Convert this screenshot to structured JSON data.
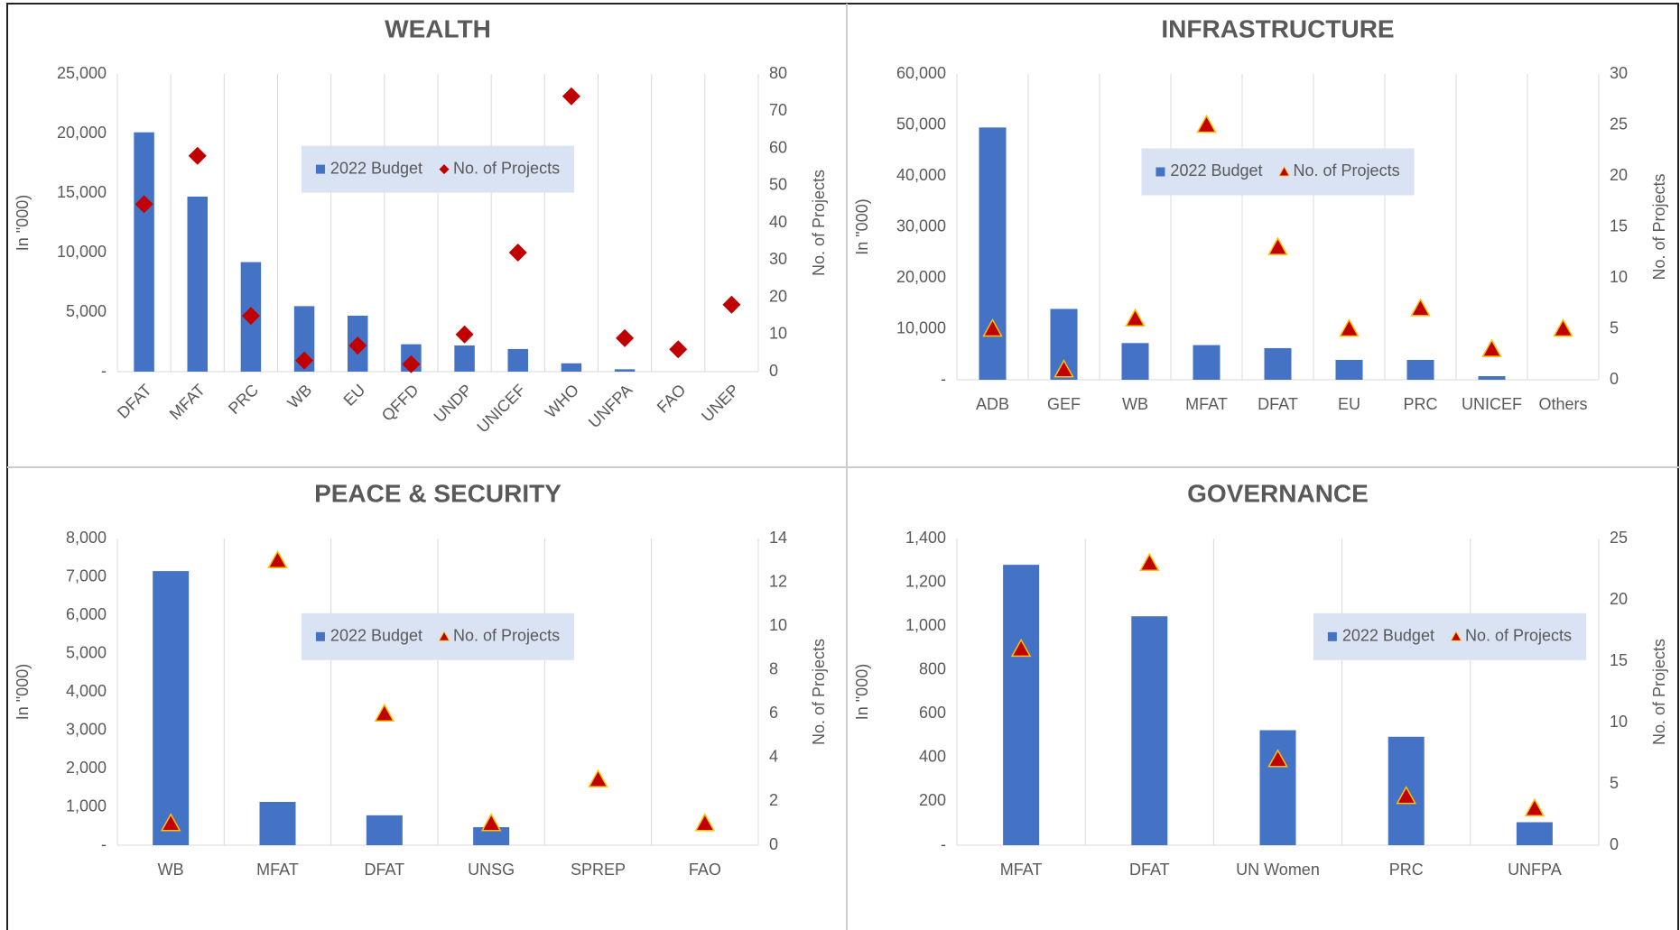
{
  "chart_data": [
    {
      "type": "bar",
      "title": "WEALTH",
      "ylabel": "In \"000)",
      "y2label": "No. of Projects",
      "categories": [
        "DFAT",
        "MFAT",
        "PRC",
        "WB",
        "EU",
        "QFFD",
        "UNDP",
        "UNICEF",
        "WHO",
        "UNFPA",
        "FAO",
        "UNEP"
      ],
      "series": [
        {
          "name": "2022 Budget",
          "color": "#4472c4",
          "values": [
            20100,
            14700,
            9200,
            5500,
            4700,
            2300,
            2200,
            1900,
            700,
            200,
            0,
            0
          ]
        },
        {
          "name": "No. of Projects",
          "color": "#c00000",
          "marker": "diamond",
          "axis": "y2",
          "values": [
            45,
            58,
            15,
            3,
            7,
            2,
            10,
            32,
            74,
            9,
            6,
            18
          ]
        }
      ],
      "ylim": [
        0,
        25000
      ],
      "yticks": [
        {
          "value": 0,
          "label": "-"
        },
        {
          "value": 5000,
          "label": "5,000"
        },
        {
          "value": 10000,
          "label": "10,000"
        },
        {
          "value": 15000,
          "label": "15,000"
        },
        {
          "value": 20000,
          "label": "20,000"
        },
        {
          "value": 25000,
          "label": "25,000"
        }
      ],
      "y2lim": [
        0,
        80
      ],
      "y2ticks": [
        0,
        10,
        20,
        30,
        40,
        50,
        60,
        70,
        80
      ],
      "rotate_labels": true,
      "legend": "upper center"
    },
    {
      "type": "bar",
      "title": "INFRASTRUCTURE",
      "ylabel": "In \"000)",
      "y2label": "No. of Projects",
      "categories": [
        "ADB",
        "GEF",
        "WB",
        "MFAT",
        "DFAT",
        "EU",
        "PRC",
        "UNICEF",
        "Others"
      ],
      "series": [
        {
          "name": "2022 Budget",
          "color": "#4472c4",
          "values": [
            49500,
            13900,
            7200,
            6800,
            6200,
            3900,
            3900,
            700,
            0
          ]
        },
        {
          "name": "No. of Projects",
          "color": "#c00000",
          "marker": "triangle",
          "axis": "y2",
          "values": [
            5,
            1,
            6,
            25,
            13,
            5,
            7,
            3,
            5
          ]
        }
      ],
      "ylim": [
        0,
        60000
      ],
      "yticks": [
        {
          "value": 0,
          "label": "-"
        },
        {
          "value": 10000,
          "label": "10,000"
        },
        {
          "value": 20000,
          "label": "20,000"
        },
        {
          "value": 30000,
          "label": "30,000"
        },
        {
          "value": 40000,
          "label": "40,000"
        },
        {
          "value": 50000,
          "label": "50,000"
        },
        {
          "value": 60000,
          "label": "60,000"
        }
      ],
      "y2lim": [
        0,
        30
      ],
      "y2ticks": [
        0,
        5,
        10,
        15,
        20,
        25,
        30
      ],
      "rotate_labels": false,
      "legend": "upper center"
    },
    {
      "type": "bar",
      "title": "PEACE & SECURITY",
      "ylabel": "In \"000)",
      "y2label": "No. of Projects",
      "categories": [
        "WB",
        "MFAT",
        "DFAT",
        "UNSG",
        "SPREP",
        "FAO"
      ],
      "series": [
        {
          "name": "2022 Budget",
          "color": "#4472c4",
          "values": [
            7150,
            1130,
            780,
            470,
            0,
            0
          ]
        },
        {
          "name": "No. of Projects",
          "color": "#c00000",
          "marker": "triangle",
          "axis": "y2",
          "values": [
            1,
            13,
            6,
            1,
            3,
            1
          ]
        }
      ],
      "ylim": [
        0,
        8000
      ],
      "yticks": [
        {
          "value": 0,
          "label": "-"
        },
        {
          "value": 1000,
          "label": "1,000"
        },
        {
          "value": 2000,
          "label": "2,000"
        },
        {
          "value": 3000,
          "label": "3,000"
        },
        {
          "value": 4000,
          "label": "4,000"
        },
        {
          "value": 5000,
          "label": "5,000"
        },
        {
          "value": 6000,
          "label": "6,000"
        },
        {
          "value": 7000,
          "label": "7,000"
        },
        {
          "value": 8000,
          "label": "8,000"
        }
      ],
      "y2lim": [
        0,
        14
      ],
      "y2ticks": [
        0,
        2,
        4,
        6,
        8,
        10,
        12,
        14
      ],
      "rotate_labels": false,
      "legend": "upper center"
    },
    {
      "type": "bar",
      "title": "GOVERNANCE",
      "ylabel": "In \"000)",
      "y2label": "No. of Projects",
      "categories": [
        "MFAT",
        "DFAT",
        "UN Women",
        "PRC",
        "UNFPA"
      ],
      "series": [
        {
          "name": "2022 Budget",
          "color": "#4472c4",
          "values": [
            1280,
            1045,
            525,
            495,
            105
          ]
        },
        {
          "name": "No. of Projects",
          "color": "#c00000",
          "marker": "triangle",
          "axis": "y2",
          "values": [
            16,
            23,
            7,
            4,
            3
          ]
        }
      ],
      "ylim": [
        0,
        1400
      ],
      "yticks": [
        {
          "value": 0,
          "label": "-"
        },
        200,
        400,
        600,
        800,
        {
          "value": 1000,
          "label": "1,000"
        },
        {
          "value": 1200,
          "label": "1,200"
        },
        {
          "value": 1400,
          "label": "1,400"
        }
      ],
      "y2lim": [
        0,
        25
      ],
      "y2ticks": [
        0,
        5,
        10,
        15,
        20,
        25
      ],
      "rotate_labels": false,
      "legend": "upper right"
    }
  ]
}
